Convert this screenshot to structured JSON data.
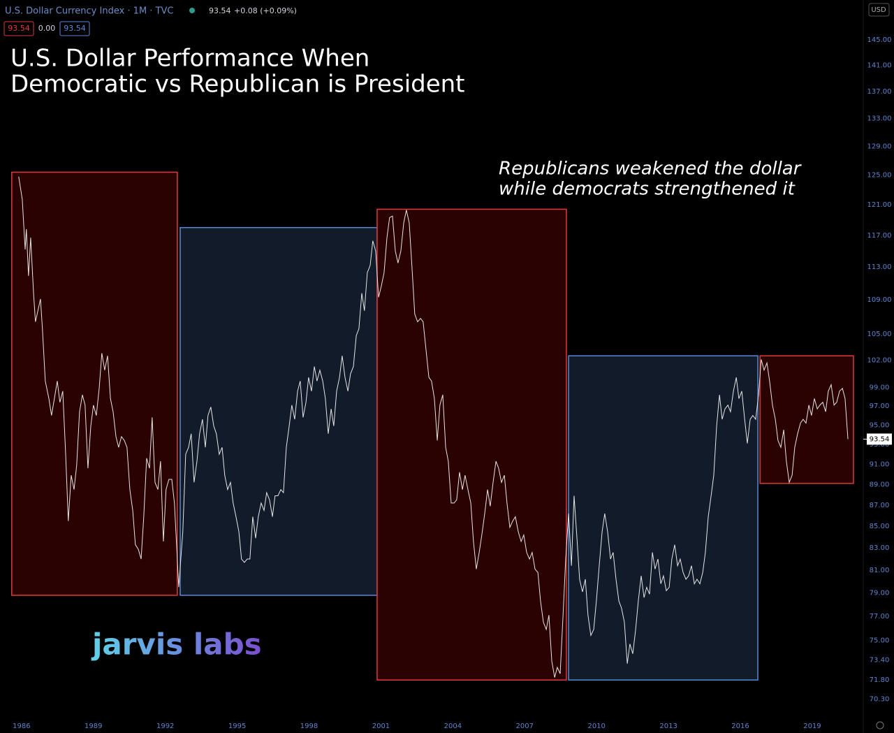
{
  "header": {
    "symbol": "U.S. Dollar Currency Index · 1M · TVC",
    "price": "93.54",
    "change": "+0.08 (+0.09%)",
    "chips": [
      "93.54",
      "0.00",
      "93.54"
    ],
    "currency": "USD"
  },
  "logo": "jarvis labs",
  "chart_data": {
    "type": "line",
    "title_lines": [
      "U.S. Dollar Performance When",
      "Democratic vs Republican is President"
    ],
    "annotation_lines": [
      "Republicans weakened the dollar",
      "while democrats strengthened it"
    ],
    "color": "#e6e6e6",
    "log_scale": true,
    "grid": false,
    "xlim": [
      1985.1,
      2021.13
    ],
    "xticks": [
      1986,
      1989,
      1992,
      1995,
      1998,
      2001,
      2004,
      2007,
      2010,
      2013,
      2016,
      2019
    ],
    "ylim": [
      69,
      151.5
    ],
    "yticks": [
      {
        "value": 145,
        "label": "145.00"
      },
      {
        "value": 141,
        "label": "141.00"
      },
      {
        "value": 137,
        "label": "137.00"
      },
      {
        "value": 133,
        "label": "133.00"
      },
      {
        "value": 129,
        "label": "129.00"
      },
      {
        "value": 125,
        "label": "125.00"
      },
      {
        "value": 121,
        "label": "121.00"
      },
      {
        "value": 117,
        "label": "117.00"
      },
      {
        "value": 113,
        "label": "113.00"
      },
      {
        "value": 109,
        "label": "109.00"
      },
      {
        "value": 105,
        "label": "105.00"
      },
      {
        "value": 102,
        "label": "102.00"
      },
      {
        "value": 99,
        "label": "99.00"
      },
      {
        "value": 97,
        "label": "97.00"
      },
      {
        "value": 95,
        "label": "95.00"
      },
      {
        "value": 93,
        "label": "93.00"
      },
      {
        "value": 91,
        "label": "91.00"
      },
      {
        "value": 89,
        "label": "89.00"
      },
      {
        "value": 87,
        "label": "87.00"
      },
      {
        "value": 85,
        "label": "85.00"
      },
      {
        "value": 83,
        "label": "83.00"
      },
      {
        "value": 81,
        "label": "81.00"
      },
      {
        "value": 79,
        "label": "79.00"
      },
      {
        "value": 77,
        "label": "77.00"
      },
      {
        "value": 75,
        "label": "75.00"
      },
      {
        "value": 73.4,
        "label": "73.40"
      },
      {
        "value": 71.8,
        "label": "71.80"
      },
      {
        "value": 70.3,
        "label": "70.30"
      }
    ],
    "regions": [
      {
        "x": [
          1985.59,
          1992.5
        ],
        "y": [
          78.8,
          125.4
        ],
        "fill": "#2b0202",
        "stroke": "#e0393b"
      },
      {
        "x": [
          1992.62,
          2000.84
        ],
        "y": [
          78.8,
          118.0
        ],
        "fill": "#121b2a",
        "stroke": "#5b8ad6"
      },
      {
        "x": [
          2000.84,
          2008.74
        ],
        "y": [
          71.8,
          120.4
        ],
        "fill": "#2b0202",
        "stroke": "#e0393b"
      },
      {
        "x": [
          2008.83,
          2016.73
        ],
        "y": [
          71.8,
          102.5
        ],
        "fill": "#121b2a",
        "stroke": "#5b8ad6"
      },
      {
        "x": [
          2016.82,
          2020.72
        ],
        "y": [
          89.1,
          102.5
        ],
        "fill": "#2b0202",
        "stroke": "#e0393b"
      }
    ],
    "x": [
      1985.88,
      1986.03,
      1986.15,
      1986.2,
      1986.29,
      1986.38,
      1986.5,
      1986.58,
      1986.79,
      1986.87,
      1986.99,
      1987.14,
      1987.25,
      1987.37,
      1987.49,
      1987.6,
      1987.72,
      1987.84,
      1987.95,
      1988.07,
      1988.19,
      1988.3,
      1988.42,
      1988.54,
      1988.65,
      1988.77,
      1988.89,
      1989,
      1989.12,
      1989.24,
      1989.35,
      1989.47,
      1989.59,
      1989.71,
      1989.82,
      1989.94,
      1990.05,
      1990.17,
      1990.29,
      1990.4,
      1990.52,
      1990.64,
      1990.75,
      1990.87,
      1990.99,
      1991.1,
      1991.22,
      1991.34,
      1991.45,
      1991.57,
      1991.69,
      1991.8,
      1991.92,
      1992.03,
      1992.15,
      1992.27,
      1992.38,
      1992.56,
      1992.73,
      1992.85,
      1992.97,
      1993.08,
      1993.2,
      1993.32,
      1993.43,
      1993.55,
      1993.67,
      1993.78,
      1993.9,
      1994.02,
      1994.13,
      1994.25,
      1994.37,
      1994.48,
      1994.6,
      1994.72,
      1994.83,
      1994.95,
      1995.07,
      1995.18,
      1995.3,
      1995.42,
      1995.53,
      1995.65,
      1995.77,
      1995.88,
      1996,
      1996.12,
      1996.23,
      1996.35,
      1996.47,
      1996.58,
      1996.7,
      1996.82,
      1996.93,
      1997.05,
      1997.17,
      1997.28,
      1997.4,
      1997.52,
      1997.63,
      1997.75,
      1997.87,
      1997.98,
      1998.1,
      1998.22,
      1998.33,
      1998.45,
      1998.57,
      1998.68,
      1998.8,
      1998.92,
      1999.03,
      1999.15,
      1999.27,
      1999.38,
      1999.5,
      1999.62,
      1999.73,
      1999.85,
      1999.97,
      2000.08,
      2000.2,
      2000.31,
      2000.43,
      2000.55,
      2000.66,
      2000.78,
      2000.9,
      2001.01,
      2001.13,
      2001.25,
      2001.36,
      2001.48,
      2001.6,
      2001.71,
      2001.83,
      2001.95,
      2002.06,
      2002.18,
      2002.3,
      2002.41,
      2002.53,
      2002.65,
      2002.76,
      2002.88,
      2003,
      2003.11,
      2003.23,
      2003.35,
      2003.46,
      2003.58,
      2003.7,
      2003.81,
      2003.93,
      2004.05,
      2004.16,
      2004.28,
      2004.4,
      2004.51,
      2004.63,
      2004.75,
      2004.86,
      2004.98,
      2005.1,
      2005.21,
      2005.33,
      2005.45,
      2005.56,
      2005.68,
      2005.8,
      2005.91,
      2006.03,
      2006.15,
      2006.26,
      2006.38,
      2006.5,
      2006.61,
      2006.73,
      2006.85,
      2006.96,
      2007.08,
      2007.2,
      2007.31,
      2007.43,
      2007.55,
      2007.66,
      2007.78,
      2007.9,
      2008.01,
      2008.13,
      2008.25,
      2008.36,
      2008.48,
      2008.6,
      2008.71,
      2008.83,
      2008.95,
      2009.06,
      2009.18,
      2009.29,
      2009.41,
      2009.53,
      2009.64,
      2009.76,
      2009.88,
      2009.99,
      2010.11,
      2010.23,
      2010.34,
      2010.46,
      2010.58,
      2010.69,
      2010.81,
      2010.93,
      2011.04,
      2011.16,
      2011.28,
      2011.39,
      2011.51,
      2011.63,
      2011.74,
      2011.86,
      2011.98,
      2012.09,
      2012.21,
      2012.33,
      2012.44,
      2012.56,
      2012.68,
      2012.79,
      2012.91,
      2013.03,
      2013.14,
      2013.26,
      2013.38,
      2013.49,
      2013.61,
      2013.73,
      2013.84,
      2013.96,
      2014.08,
      2014.19,
      2014.31,
      2014.43,
      2014.54,
      2014.66,
      2014.78,
      2014.89,
      2015.01,
      2015.13,
      2015.24,
      2015.36,
      2015.48,
      2015.59,
      2015.71,
      2015.83,
      2015.94,
      2016.06,
      2016.18,
      2016.29,
      2016.41,
      2016.52,
      2016.64,
      2016.76,
      2016.87,
      2016.99,
      2017.11,
      2017.22,
      2017.34,
      2017.46,
      2017.57,
      2017.69,
      2017.81,
      2017.92,
      2018.04,
      2018.16,
      2018.27,
      2018.39,
      2018.51,
      2018.62,
      2018.74,
      2018.86,
      2018.97,
      2019.09,
      2019.21,
      2019.32,
      2019.44,
      2019.56,
      2019.67,
      2019.79,
      2019.91,
      2020.02,
      2020.14,
      2020.26,
      2020.37,
      2020.49
    ],
    "values": [
      124.8,
      121.7,
      115.2,
      117.8,
      111.9,
      116.7,
      109.8,
      106.4,
      109.1,
      105.6,
      99.7,
      97.8,
      96.0,
      97.8,
      99.7,
      97.4,
      98.6,
      92.0,
      85.5,
      89.9,
      88.5,
      90.9,
      96.4,
      98.2,
      97.1,
      90.6,
      94.9,
      97.1,
      96.0,
      98.9,
      102.8,
      100.9,
      102.5,
      97.8,
      96.4,
      93.8,
      92.7,
      93.8,
      93.4,
      92.7,
      88.5,
      86.5,
      83.3,
      82.9,
      82.0,
      85.9,
      91.6,
      90.6,
      95.8,
      89.2,
      88.5,
      91.3,
      83.6,
      88.5,
      89.5,
      89.5,
      87.2,
      79.5,
      84.5,
      92.0,
      92.7,
      94.1,
      89.2,
      91.3,
      94.1,
      95.6,
      92.7,
      96.0,
      96.9,
      94.9,
      94.1,
      92.0,
      92.7,
      89.9,
      88.5,
      89.2,
      87.2,
      85.9,
      84.5,
      82.0,
      81.7,
      82.0,
      82.0,
      85.9,
      83.9,
      85.9,
      87.2,
      86.5,
      88.2,
      87.5,
      85.9,
      87.9,
      87.9,
      88.5,
      88.2,
      92.7,
      94.9,
      97.1,
      95.6,
      98.6,
      99.7,
      95.8,
      97.4,
      100.1,
      98.6,
      101.3,
      99.7,
      100.9,
      99.7,
      97.8,
      94.1,
      96.7,
      94.9,
      98.6,
      100.1,
      102.5,
      100.1,
      98.6,
      100.5,
      101.3,
      104.8,
      105.6,
      109.8,
      107.7,
      112.3,
      113.2,
      116.3,
      115.0,
      109.3,
      110.6,
      112.3,
      116.7,
      119.3,
      119.5,
      115.0,
      113.5,
      115.0,
      118.6,
      120.3,
      118.6,
      112.7,
      107.3,
      106.4,
      106.8,
      106.4,
      103.2,
      100.1,
      99.7,
      97.8,
      93.4,
      97.1,
      98.2,
      92.7,
      91.3,
      87.2,
      87.2,
      87.5,
      90.2,
      88.5,
      89.9,
      88.5,
      87.2,
      83.6,
      81.1,
      82.6,
      84.2,
      86.2,
      88.5,
      86.9,
      89.2,
      91.3,
      90.6,
      89.2,
      89.9,
      87.2,
      84.9,
      85.5,
      85.9,
      84.5,
      83.6,
      84.2,
      82.6,
      82.0,
      82.6,
      81.1,
      80.8,
      78.3,
      76.5,
      75.9,
      77.1,
      73.3,
      72.0,
      72.8,
      72.3,
      77.1,
      82.0,
      86.2,
      81.4,
      87.9,
      83.9,
      80.2,
      79.1,
      80.2,
      77.1,
      75.4,
      75.9,
      78.3,
      81.4,
      84.5,
      86.2,
      84.5,
      82.0,
      82.6,
      80.2,
      78.3,
      77.7,
      76.5,
      73.1,
      74.7,
      73.9,
      75.9,
      78.3,
      80.5,
      78.6,
      79.5,
      78.9,
      82.6,
      81.1,
      82.0,
      79.8,
      80.5,
      79.2,
      79.5,
      82.0,
      83.3,
      81.4,
      82.0,
      80.8,
      80.2,
      80.5,
      81.4,
      79.8,
      80.2,
      79.8,
      80.8,
      82.6,
      85.9,
      87.9,
      89.9,
      94.9,
      98.2,
      95.6,
      96.7,
      97.1,
      96.4,
      98.6,
      100.1,
      97.8,
      98.6,
      95.6,
      93.1,
      95.6,
      96.0,
      95.6,
      98.2,
      102.1,
      100.9,
      101.7,
      99.7,
      97.1,
      95.6,
      93.4,
      92.7,
      94.5,
      91.3,
      89.2,
      89.9,
      92.7,
      94.1,
      95.2,
      95.6,
      95.2,
      97.1,
      96.0,
      97.8,
      96.7,
      97.1,
      97.4,
      96.4,
      98.6,
      99.3,
      97.1,
      97.4,
      98.6,
      98.9,
      97.8,
      93.54
    ]
  }
}
